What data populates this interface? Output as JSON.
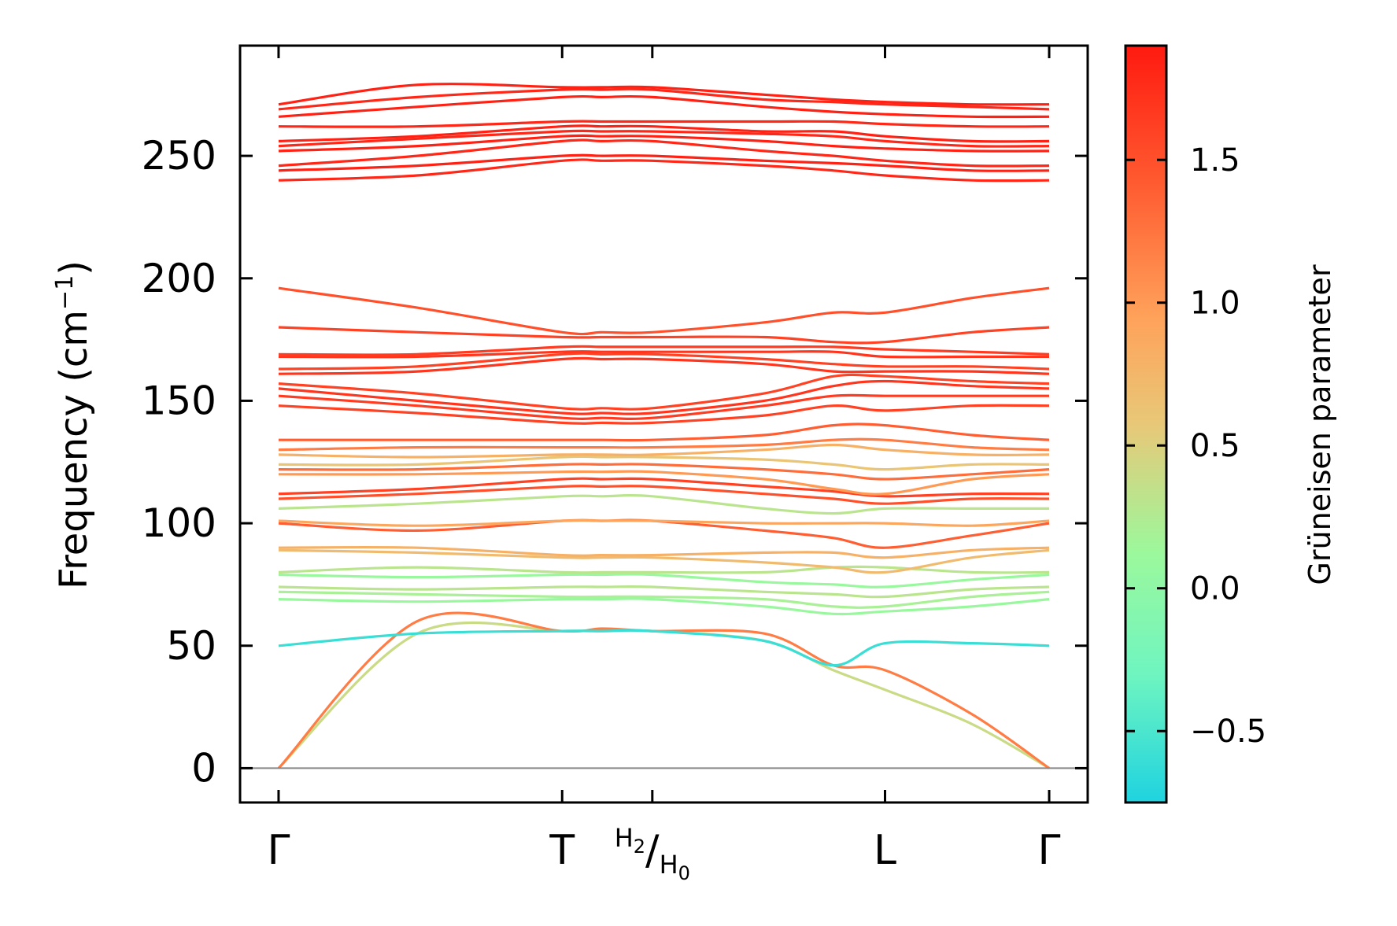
{
  "chart_data": {
    "type": "line",
    "ylabel_main": "Frequency (cm",
    "ylabel_sup": "−1",
    "ylabel_close": ")",
    "ylim": [
      -14,
      295
    ],
    "y_ticks": [
      0,
      50,
      100,
      150,
      200,
      250
    ],
    "y_tick_labels": [
      "0",
      "50",
      "100",
      "150",
      "200",
      "250"
    ],
    "x_ticks": [
      {
        "pos": 0.0,
        "label": "Γ"
      },
      {
        "pos": 0.368,
        "label": "T"
      },
      {
        "pos": 0.485,
        "label_num": "H",
        "sub_num": "2",
        "label_den": "H",
        "sub_den": "0"
      },
      {
        "pos": 0.787,
        "label": "L"
      },
      {
        "pos": 1.0,
        "label": "Γ"
      }
    ],
    "xlim": [
      -0.05,
      1.05
    ],
    "zero_line": true,
    "colorbar": {
      "label": "Grüneisen parameter",
      "range": [
        -0.75,
        1.9
      ],
      "ticks": [
        -0.5,
        0.0,
        0.5,
        1.0,
        1.5
      ],
      "tick_labels": [
        "−0.5",
        "0.0",
        "0.5",
        "1.0",
        "1.5"
      ],
      "colormap": "rainbow-upper",
      "colors": [
        "#1fd3e0",
        "#6ff5c0",
        "#9cf89c",
        "#e8c878",
        "#ffa25a",
        "#ff5a30",
        "#ff1a10"
      ]
    },
    "bands_note_gamma_T_H_L_Gamma": true,
    "bands": [
      {
        "f": [
          0,
          55,
          56,
          56,
          56,
          52,
          40,
          32,
          18,
          0
        ],
        "g": 0.4
      },
      {
        "f": [
          0,
          60,
          56,
          57,
          56,
          55,
          42,
          40,
          22,
          0
        ],
        "g": 1.2
      },
      {
        "f": [
          50,
          55,
          56,
          56,
          56,
          52,
          42,
          51,
          51,
          50
        ],
        "g": -0.6
      },
      {
        "f": [
          69,
          68,
          69,
          69,
          69,
          66,
          63,
          64,
          66,
          69
        ],
        "g": 0.1
      },
      {
        "f": [
          72,
          71,
          70,
          70,
          70,
          69,
          66,
          66,
          70,
          72
        ],
        "g": 0.2
      },
      {
        "f": [
          74,
          73,
          74,
          74,
          74,
          72,
          71,
          70,
          73,
          74
        ],
        "g": 0.3
      },
      {
        "f": [
          79,
          78,
          79,
          79,
          79,
          76,
          75,
          74,
          77,
          79
        ],
        "g": 0.1
      },
      {
        "f": [
          80,
          82,
          80,
          80,
          80,
          80,
          82,
          82,
          80,
          80
        ],
        "g": 0.3
      },
      {
        "f": [
          89,
          88,
          86,
          86,
          86,
          84,
          82,
          80,
          86,
          89
        ],
        "g": 0.7
      },
      {
        "f": [
          90,
          90,
          87,
          87,
          87,
          88,
          88,
          86,
          89,
          90
        ],
        "g": 0.8
      },
      {
        "f": [
          100,
          97,
          101,
          101,
          101,
          97,
          94,
          90,
          95,
          100
        ],
        "g": 1.4
      },
      {
        "f": [
          101,
          99,
          101,
          101,
          101,
          100,
          100,
          100,
          99,
          101
        ],
        "g": 0.9
      },
      {
        "f": [
          106,
          108,
          111,
          111,
          111,
          106,
          104,
          106,
          106,
          106
        ],
        "g": 0.3
      },
      {
        "f": [
          110,
          112,
          115,
          115,
          115,
          112,
          110,
          108,
          110,
          110
        ],
        "g": 1.5
      },
      {
        "f": [
          112,
          114,
          118,
          118,
          118,
          115,
          113,
          111,
          112,
          112
        ],
        "g": 1.6
      },
      {
        "f": [
          120,
          120,
          121,
          121,
          121,
          118,
          114,
          112,
          118,
          120
        ],
        "g": 1.0
      },
      {
        "f": [
          122,
          122,
          124,
          124,
          124,
          122,
          120,
          118,
          120,
          122
        ],
        "g": 1.3
      },
      {
        "f": [
          124,
          124,
          127,
          127,
          127,
          126,
          124,
          122,
          124,
          124
        ],
        "g": 0.6
      },
      {
        "f": [
          128,
          127,
          128,
          128,
          128,
          130,
          132,
          130,
          128,
          128
        ],
        "g": 0.8
      },
      {
        "f": [
          130,
          131,
          131,
          131,
          131,
          132,
          134,
          134,
          131,
          130
        ],
        "g": 1.2
      },
      {
        "f": [
          134,
          134,
          134,
          134,
          134,
          136,
          140,
          140,
          136,
          134
        ],
        "g": 1.4
      },
      {
        "f": [
          148,
          145,
          141,
          141,
          141,
          144,
          148,
          146,
          148,
          148
        ],
        "g": 1.6
      },
      {
        "f": [
          152,
          148,
          143,
          143,
          143,
          148,
          152,
          152,
          152,
          152
        ],
        "g": 1.65
      },
      {
        "f": [
          155,
          150,
          145,
          145,
          145,
          150,
          156,
          158,
          156,
          155
        ],
        "g": 1.7
      },
      {
        "f": [
          157,
          153,
          147,
          147,
          147,
          153,
          160,
          160,
          158,
          157
        ],
        "g": 1.6
      },
      {
        "f": [
          161,
          162,
          167,
          167,
          167,
          165,
          162,
          162,
          162,
          161
        ],
        "g": 1.7
      },
      {
        "f": [
          163,
          164,
          169,
          169,
          169,
          167,
          165,
          164,
          164,
          163
        ],
        "g": 1.6
      },
      {
        "f": [
          168,
          168,
          170,
          170,
          170,
          170,
          170,
          168,
          168,
          168
        ],
        "g": 1.7
      },
      {
        "f": [
          169,
          169,
          172,
          172,
          172,
          172,
          172,
          171,
          170,
          169
        ],
        "g": 1.65
      },
      {
        "f": [
          180,
          178,
          176,
          176,
          176,
          176,
          174,
          174,
          178,
          180
        ],
        "g": 1.6
      },
      {
        "f": [
          196,
          188,
          178,
          178,
          178,
          182,
          186,
          186,
          192,
          196
        ],
        "g": 1.5
      },
      {
        "f": [
          240,
          242,
          248,
          248,
          248,
          246,
          244,
          242,
          240,
          240
        ],
        "g": 1.8
      },
      {
        "f": [
          244,
          246,
          250,
          250,
          250,
          248,
          247,
          246,
          244,
          244
        ],
        "g": 1.85
      },
      {
        "f": [
          246,
          250,
          256,
          256,
          256,
          252,
          250,
          248,
          246,
          246
        ],
        "g": 1.8
      },
      {
        "f": [
          252,
          254,
          258,
          258,
          258,
          256,
          254,
          253,
          252,
          252
        ],
        "g": 1.85
      },
      {
        "f": [
          254,
          257,
          260,
          260,
          260,
          259,
          258,
          256,
          254,
          254
        ],
        "g": 1.8
      },
      {
        "f": [
          256,
          258,
          262,
          262,
          262,
          260,
          260,
          258,
          256,
          256
        ],
        "g": 1.85
      },
      {
        "f": [
          262,
          262,
          264,
          264,
          264,
          264,
          264,
          263,
          262,
          262
        ],
        "g": 1.8
      },
      {
        "f": [
          266,
          270,
          274,
          274,
          274,
          270,
          268,
          267,
          266,
          266
        ],
        "g": 1.85
      },
      {
        "f": [
          269,
          274,
          277,
          277,
          277,
          273,
          272,
          271,
          270,
          269
        ],
        "g": 1.8
      },
      {
        "f": [
          271,
          279,
          278,
          278,
          278,
          275,
          273,
          272,
          271,
          271
        ],
        "g": 1.85
      }
    ]
  }
}
